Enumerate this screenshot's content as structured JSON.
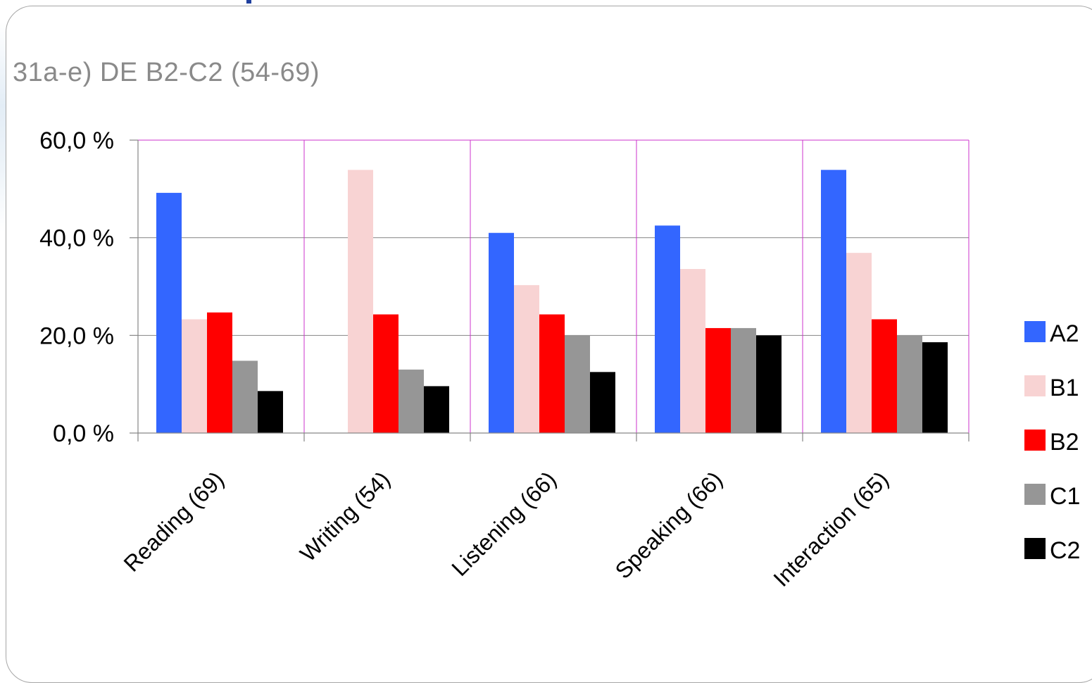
{
  "chart_data": {
    "type": "bar",
    "title": "31a-e) DE B2-C2 (54-69)",
    "categories": [
      "Reading (69)",
      "Writing (54)",
      "Listening (66)",
      "Speaking (66)",
      "Interaction (65)"
    ],
    "series": [
      {
        "name": "A2",
        "color": "#3366ff",
        "values": [
          49.2,
          0.0,
          41.0,
          42.5,
          53.9
        ]
      },
      {
        "name": "B1",
        "color": "#f8d3d3",
        "values": [
          23.3,
          53.9,
          30.3,
          33.6,
          36.9
        ]
      },
      {
        "name": "B2",
        "color": "#ff0000",
        "values": [
          24.7,
          24.3,
          24.3,
          21.5,
          23.3
        ]
      },
      {
        "name": "C1",
        "color": "#969696",
        "values": [
          14.8,
          13.0,
          20.0,
          21.5,
          20.0
        ]
      },
      {
        "name": "C2",
        "color": "#000000",
        "values": [
          8.6,
          9.6,
          12.5,
          20.0,
          18.6
        ]
      }
    ],
    "yticks": [
      "0,0 %",
      "20,0 %",
      "40,0 %",
      "60,0 %"
    ],
    "ytick_values": [
      0,
      20,
      40,
      60
    ],
    "ylim": [
      0,
      60
    ],
    "xlabel": "",
    "ylabel": "",
    "grid": true,
    "legend_position": "right"
  }
}
